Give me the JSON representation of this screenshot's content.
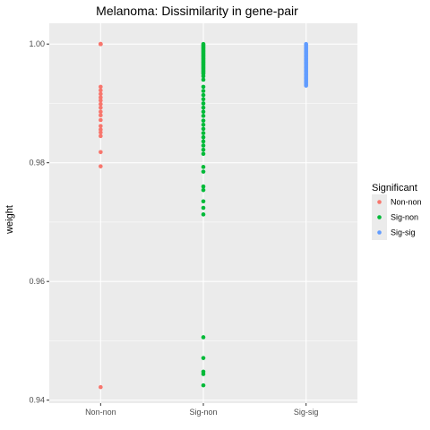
{
  "chart_data": {
    "type": "scatter",
    "title": "Melanoma: Dissimilarity in gene-pair",
    "xlabel": "",
    "ylabel": "weight",
    "categories": [
      "Non-non",
      "Sig-non",
      "Sig-sig"
    ],
    "ylim": [
      0.9395,
      1.0035
    ],
    "yticks": [
      0.94,
      0.96,
      0.98,
      1.0
    ],
    "ytick_labels": [
      "0.94",
      "0.96",
      "0.98",
      "1.00"
    ],
    "grid": true,
    "legend": {
      "title": "Significant",
      "position": "right",
      "entries": [
        "Non-non",
        "Sig-non",
        "Sig-sig"
      ]
    },
    "colors": {
      "Non-non": "#F8766D",
      "Sig-non": "#00BA38",
      "Sig-sig": "#619CFF",
      "panel": "#EBEBEB",
      "grid": "#FFFFFF"
    },
    "series": [
      {
        "name": "Non-non",
        "category": "Non-non",
        "values": [
          1.0,
          1.0,
          1.0,
          1.0,
          0.9928,
          0.9922,
          0.9916,
          0.991,
          0.9905,
          0.9899,
          0.9893,
          0.9886,
          0.988,
          0.9872,
          0.9862,
          0.9856,
          0.9851,
          0.9845,
          0.9818,
          0.9794,
          0.9422
        ]
      },
      {
        "name": "Sig-non",
        "category": "Sig-non",
        "values": [
          1.0,
          0.9998,
          0.9996,
          0.9994,
          0.9992,
          0.999,
          0.9988,
          0.9986,
          0.9984,
          0.9982,
          0.998,
          0.9978,
          0.9976,
          0.9974,
          0.9972,
          0.997,
          0.9968,
          0.9966,
          0.9964,
          0.9962,
          0.996,
          0.9958,
          0.9956,
          0.9954,
          0.9952,
          0.995,
          0.9946,
          0.994,
          0.9928,
          0.9921,
          0.9914,
          0.9907,
          0.99,
          0.9893,
          0.9886,
          0.9879,
          0.9871,
          0.9864,
          0.9857,
          0.985,
          0.9843,
          0.9836,
          0.9829,
          0.9822,
          0.9815,
          0.9793,
          0.9785,
          0.976,
          0.9754,
          0.9735,
          0.9724,
          0.9713,
          0.9506,
          0.9471,
          0.9448,
          0.9444,
          0.9425
        ]
      },
      {
        "name": "Sig-sig",
        "category": "Sig-sig",
        "values": [
          1.0,
          0.9998,
          0.9996,
          0.9994,
          0.9992,
          0.999,
          0.9988,
          0.9986,
          0.9984,
          0.9982,
          0.998,
          0.9978,
          0.9976,
          0.9974,
          0.9972,
          0.997,
          0.9968,
          0.9966,
          0.9964,
          0.9962,
          0.996,
          0.9958,
          0.9956,
          0.9954,
          0.9952,
          0.995,
          0.9948,
          0.9946,
          0.9944,
          0.9942,
          0.994,
          0.9938,
          0.9936,
          0.9934,
          0.9932,
          0.993
        ]
      }
    ]
  }
}
